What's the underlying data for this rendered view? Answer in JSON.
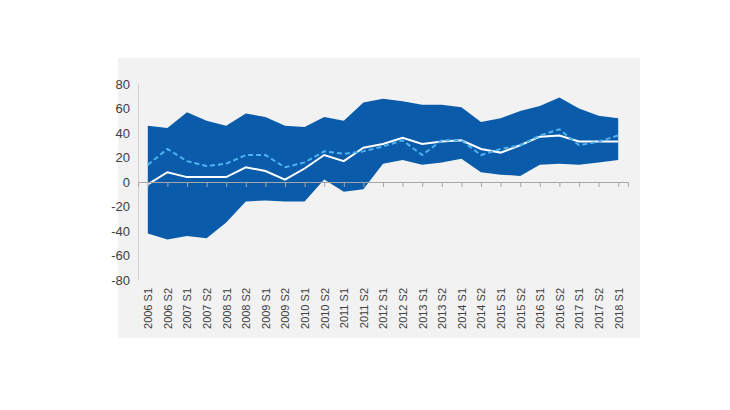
{
  "chart_data": {
    "type": "range_line",
    "categories": [
      "2006 S1",
      "2006 S2",
      "2007 S1",
      "2007 S2",
      "2008 S1",
      "2008 S2",
      "2009 S1",
      "2009 S2",
      "2010 S1",
      "2010 S2",
      "2011 S1",
      "2011 S2",
      "2012 S1",
      "2012 S2",
      "2013 S1",
      "2013 S2",
      "2014 S1",
      "2014 S2",
      "2015 S1",
      "2015 S2",
      "2016 S1",
      "2016 S2",
      "2017 S1",
      "2017 S2",
      "2018 S1"
    ],
    "series": [
      {
        "type": "range",
        "color": "#0a5caa",
        "low": [
          -42,
          -47,
          -44,
          -46,
          -33,
          -16,
          -15,
          -16,
          -16,
          2,
          -8,
          -6,
          15,
          18,
          14,
          16,
          19,
          8,
          6,
          5,
          14,
          15,
          14,
          16,
          18
        ],
        "high": [
          46,
          44,
          57,
          50,
          46,
          56,
          53,
          46,
          45,
          53,
          50,
          65,
          68,
          66,
          63,
          63,
          61,
          49,
          52,
          58,
          62,
          69,
          60,
          54,
          52
        ]
      },
      {
        "type": "line",
        "color": "#ffffff",
        "line_style": "solid",
        "values": [
          -2,
          8,
          4,
          4,
          4,
          12,
          9,
          2,
          11,
          22,
          17,
          28,
          31,
          36,
          31,
          33,
          34,
          27,
          24,
          30,
          37,
          38,
          33,
          33,
          33
        ]
      },
      {
        "type": "line",
        "color": "#4fb3ef",
        "line_style": "dashed",
        "values": [
          14,
          27,
          17,
          13,
          15,
          22,
          22,
          12,
          16,
          25,
          23,
          25,
          29,
          34,
          22,
          34,
          34,
          22,
          27,
          30,
          38,
          43,
          30,
          33,
          38
        ]
      }
    ],
    "ylim": [
      -80,
      80
    ],
    "yticks": [
      -80,
      -60,
      -40,
      -20,
      0,
      20,
      40,
      60,
      80
    ],
    "grid": false
  }
}
